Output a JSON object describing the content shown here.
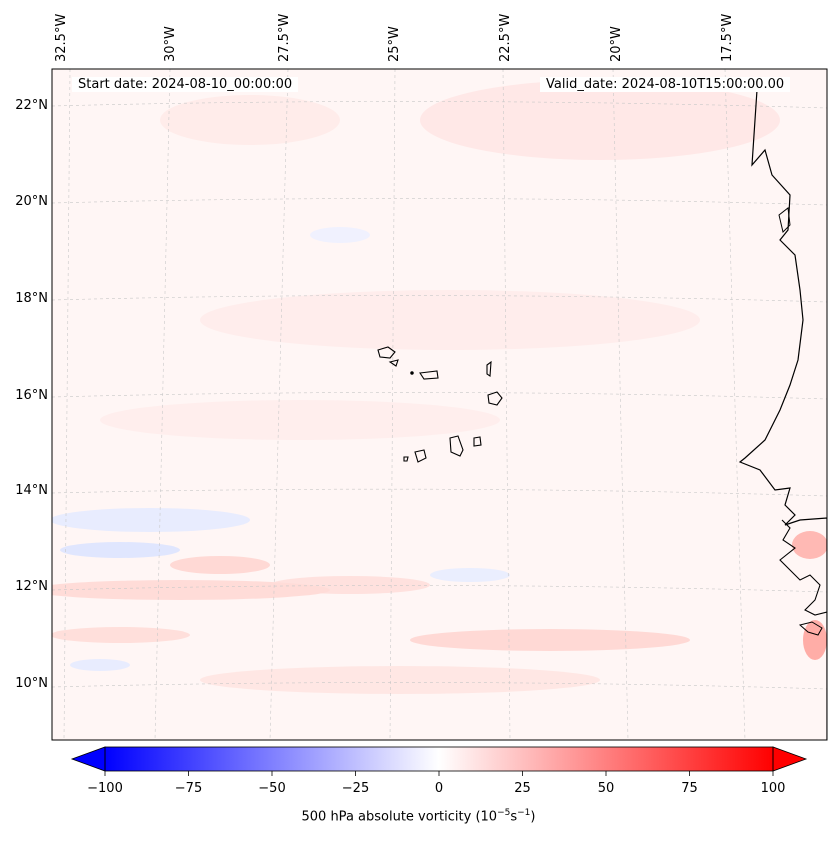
{
  "map": {
    "start_date": "Start date: 2024-08-10_00:00:00",
    "valid_date": "Valid_date: 2024-08-10T15:00:00.00",
    "longitude_labels": [
      "32.5°W",
      "30°W",
      "27.5°W",
      "25°W",
      "22.5°W",
      "20°W",
      "17.5°W"
    ],
    "latitude_labels": [
      "22°N",
      "20°N",
      "18°N",
      "16°N",
      "14°N",
      "12°N",
      "10°N"
    ],
    "field": "500 hPa absolute vorticity",
    "islands": "Cape Verde",
    "coast": "West Africa"
  },
  "colorbar": {
    "label_prefix": "500 hPa absolute vorticity (10",
    "label_exp1": "−5",
    "label_mid": "s",
    "label_exp2": "−1",
    "label_suffix": ")",
    "ticks": [
      "−100",
      "−75",
      "−50",
      "−25",
      "0",
      "25",
      "50",
      "75",
      "100"
    ],
    "min": -100,
    "max": 100,
    "extend": "both",
    "colormap": "bwr",
    "neg_color": "#0000ff",
    "mid_color": "#ffffff",
    "pos_color": "#ff0000"
  }
}
